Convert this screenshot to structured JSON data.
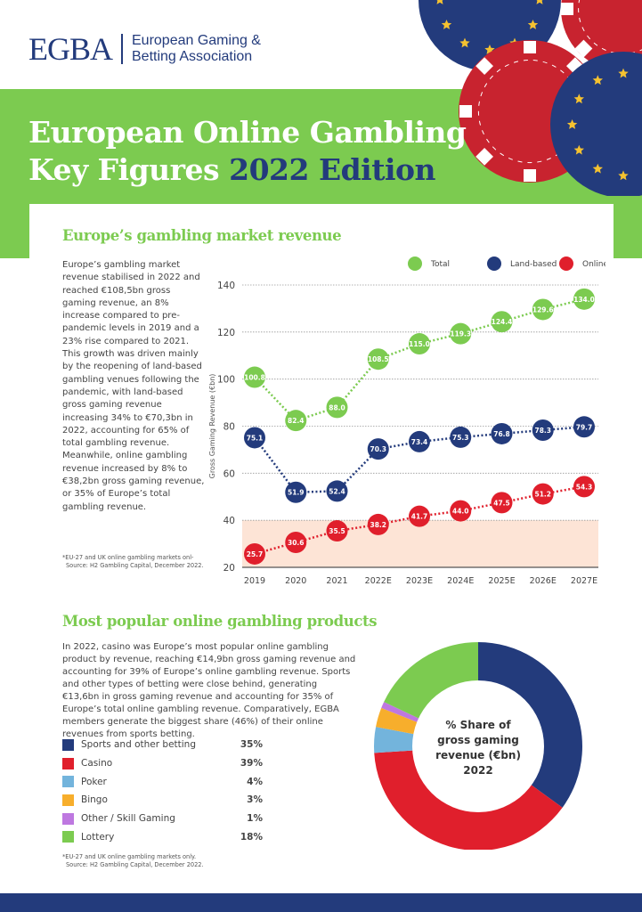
{
  "header": {
    "logo_mark": "EGBA",
    "org_line1": "European Gaming &",
    "org_line2": "Betting Association"
  },
  "title": {
    "line1": "European Online Gambling",
    "line2_a": "Key Figures ",
    "line2_b": "2022 Edition"
  },
  "colors": {
    "green": "#7ccb50",
    "navy": "#233b7c",
    "red": "#e01f2c",
    "poker": "#73b4dc",
    "bingo": "#f7ae2c",
    "other": "#be78e0",
    "band": "#fde4d6"
  },
  "section1": {
    "heading": "Europe’s gambling market revenue",
    "body": "Europe’s gambling market revenue stabilised in 2022 and reached €108,5bn gross gaming revenue, an 8% increase compared to pre-pandemic levels in 2019 and a 23% rise compared to 2021. This growth was driven mainly by the reopening of land-based gambling venues following the pandemic, with land-based gross gaming revenue increasing 34% to €70,3bn in 2022, accounting for 65% of total gambling revenue. Meanwhile, online gambling revenue increased by 8% to €38,2bn gross gaming revenue, or 35% of Europe’s total gambling revenue.",
    "note1": "*EU-27 and UK online gambling markets onl-",
    "note2": "Source: H2 Gambling Capital, December 2022."
  },
  "section2": {
    "heading": "Most popular online gambling products",
    "body": "In 2022, casino was Europe’s most popular online gambling product by revenue, reaching €14,9bn gross gaming revenue and accounting for 39% of Europe’s online gambling revenue. Sports and other types of betting were close behind, generating €13,6bn in gross gaming revenue and accounting for 35% of Europe’s total online gambling revenue. Comparatively, EGBA members generate the biggest share (46%) of their online revenues from sports betting.",
    "note1": "*EU-27 and UK online gambling markets only.",
    "note2": "Source: H2 Gambling Capital, December 2022."
  },
  "chart_data": [
    {
      "type": "line",
      "ylabel": "Gross Gaming Revenue (€bn)",
      "ylim": [
        20,
        140
      ],
      "yticks": [
        20,
        40,
        60,
        80,
        100,
        120,
        140
      ],
      "grid": true,
      "legend": "top-right",
      "shaded_band": [
        20,
        40
      ],
      "categories": [
        "2019",
        "2020",
        "2021",
        "2022E",
        "2023E",
        "2024E",
        "2025E",
        "2026E",
        "2027E"
      ],
      "series": [
        {
          "name": "Total",
          "color": "#7ccb50",
          "values": [
            100.8,
            82.4,
            88.0,
            108.5,
            115.0,
            119.3,
            124.4,
            129.6,
            134.0
          ]
        },
        {
          "name": "Land-based",
          "color": "#233b7c",
          "values": [
            75.1,
            51.9,
            52.4,
            70.3,
            73.4,
            75.3,
            76.8,
            78.3,
            79.7
          ]
        },
        {
          "name": "Online",
          "color": "#e01f2c",
          "values": [
            25.7,
            30.6,
            35.5,
            38.2,
            41.7,
            44.0,
            47.5,
            51.2,
            54.3
          ]
        }
      ]
    },
    {
      "type": "pie",
      "title_lines": [
        "% Share of",
        "gross gaming",
        "revenue (€bn)",
        "2022"
      ],
      "slices": [
        {
          "label": "Sports and other betting",
          "value": 35,
          "pct": "35%",
          "color": "#233b7c"
        },
        {
          "label": "Casino",
          "value": 39,
          "pct": "39%",
          "color": "#e01f2c"
        },
        {
          "label": "Poker",
          "value": 4,
          "pct": "4%",
          "color": "#73b4dc"
        },
        {
          "label": "Bingo",
          "value": 3,
          "pct": "3%",
          "color": "#f7ae2c"
        },
        {
          "label": "Other / Skill Gaming",
          "value": 1,
          "pct": "1%",
          "color": "#be78e0"
        },
        {
          "label": "Lottery",
          "value": 18,
          "pct": "18%",
          "color": "#7ccb50"
        }
      ]
    }
  ]
}
